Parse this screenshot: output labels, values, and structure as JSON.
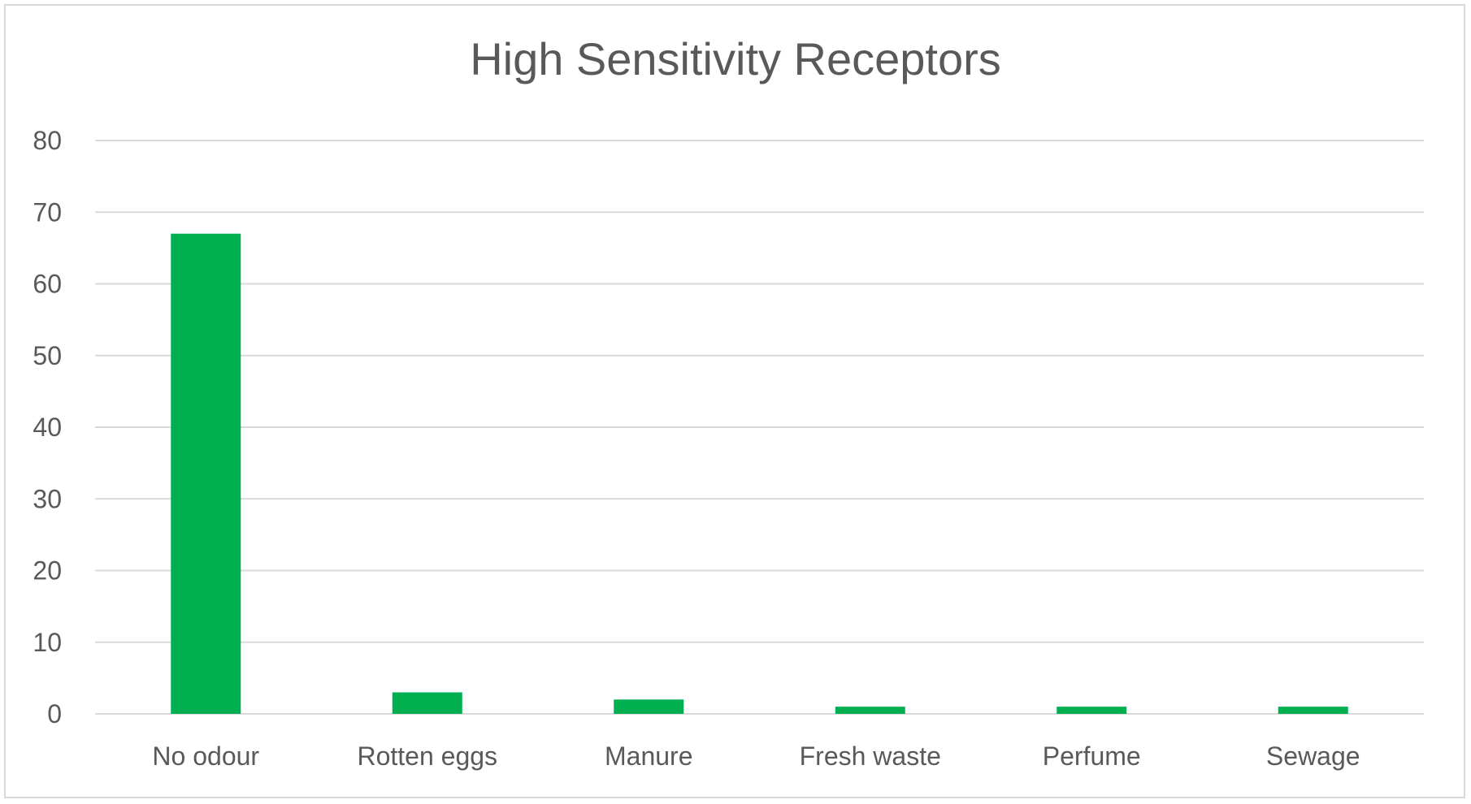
{
  "chart_data": {
    "type": "bar",
    "title": "High Sensitivity Receptors",
    "categories": [
      "No odour",
      "Rotten eggs",
      "Manure",
      "Fresh waste",
      "Perfume",
      "Sewage"
    ],
    "values": [
      67,
      3,
      2,
      1,
      1,
      1
    ],
    "ylim": [
      0,
      80
    ],
    "yticks": [
      0,
      10,
      20,
      30,
      40,
      50,
      60,
      70,
      80
    ],
    "xlabel": "",
    "ylabel": "",
    "grid": true,
    "legend": "none",
    "colors": {
      "bar": "#00b050",
      "grid": "#d9d9d9",
      "text": "#595959"
    }
  }
}
